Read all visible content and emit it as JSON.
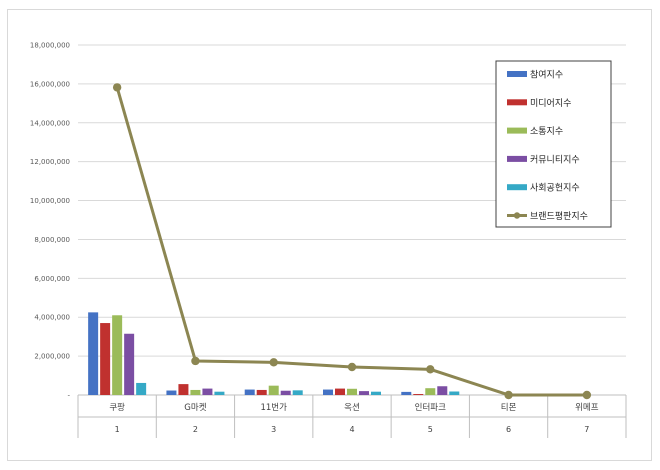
{
  "chart_data": {
    "type": "bar",
    "categories": [
      "쿠팡",
      "G마켓",
      "11번가",
      "옥션",
      "인터파크",
      "티몬",
      "위메프"
    ],
    "indices": [
      "1",
      "2",
      "3",
      "4",
      "5",
      "6",
      "7"
    ],
    "ylim": [
      0,
      18000000
    ],
    "yticks": [
      {
        "value": 0,
        "label": "-"
      },
      {
        "value": 2000000,
        "label": "2,000,000"
      },
      {
        "value": 4000000,
        "label": "4,000,000"
      },
      {
        "value": 6000000,
        "label": "6,000,000"
      },
      {
        "value": 8000000,
        "label": "8,000,000"
      },
      {
        "value": 10000000,
        "label": "10,000,000"
      },
      {
        "value": 12000000,
        "label": "12,000,000"
      },
      {
        "value": 14000000,
        "label": "14,000,000"
      },
      {
        "value": 16000000,
        "label": "16,000,000"
      },
      {
        "value": 18000000,
        "label": "18,000,000"
      }
    ],
    "grid": true,
    "legend_position": "top-right",
    "series": [
      {
        "name": "참여지수",
        "type": "bar",
        "color": "#4472C4",
        "values": [
          4250000,
          230000,
          280000,
          280000,
          160000,
          0,
          0
        ]
      },
      {
        "name": "미디어지수",
        "type": "bar",
        "color": "#C0312F",
        "values": [
          3700000,
          560000,
          260000,
          330000,
          50000,
          0,
          0
        ]
      },
      {
        "name": "소통지수",
        "type": "bar",
        "color": "#9BBB59",
        "values": [
          4100000,
          260000,
          480000,
          320000,
          350000,
          0,
          0
        ]
      },
      {
        "name": "커뮤니티지수",
        "type": "bar",
        "color": "#7B4EA3",
        "values": [
          3150000,
          330000,
          220000,
          200000,
          450000,
          0,
          0
        ]
      },
      {
        "name": "사회공헌지수",
        "type": "bar",
        "color": "#35A9C6",
        "values": [
          620000,
          170000,
          240000,
          170000,
          180000,
          0,
          0
        ]
      },
      {
        "name": "브랜드평판지수",
        "type": "line",
        "color": "#8C8652",
        "values": [
          15820000,
          1750000,
          1680000,
          1440000,
          1320000,
          0,
          0
        ]
      }
    ]
  }
}
